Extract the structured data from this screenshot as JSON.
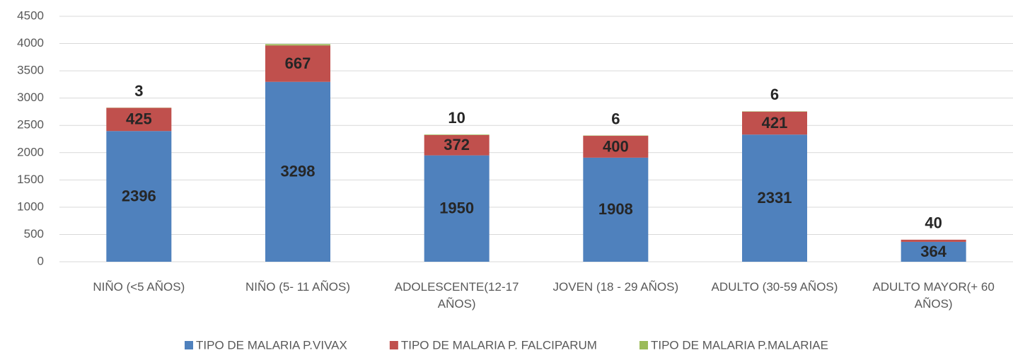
{
  "chart_data": {
    "type": "stacked_bar",
    "categories": [
      "NIÑO (<5 AÑOS)",
      "NIÑO (5- 11 AÑOS)",
      "ADOLESCENTE(12-17 AÑOS)",
      "JOVEN (18 - 29 AÑOS)",
      "ADULTO (30-59 AÑOS)",
      "ADULTO MAYOR(+ 60 AÑOS)"
    ],
    "series": [
      {
        "name": "TIPO DE MALARIA P.VIVAX",
        "color": "#4f81bd",
        "values": [
          2396,
          3298,
          1950,
          1908,
          2331,
          364
        ],
        "value_labels": [
          2396,
          3298,
          1950,
          1908,
          2331,
          364
        ]
      },
      {
        "name": "TIPO DE MALARIA P. FALCIPARUM",
        "color": "#c0504d",
        "values": [
          425,
          667,
          372,
          400,
          421,
          40
        ],
        "value_labels": [
          425,
          667,
          372,
          400,
          421,
          40
        ]
      },
      {
        "name": "TIPO DE MALARIA P.MALARIAE",
        "color": "#9bbb59",
        "values": [
          3,
          25,
          10,
          6,
          6,
          0
        ],
        "value_labels": [
          3,
          null,
          10,
          6,
          6,
          null
        ]
      }
    ],
    "ylim": [
      0,
      4500
    ],
    "yticks": [
      0,
      500,
      1000,
      1500,
      2000,
      2500,
      3000,
      3500,
      4000,
      4500
    ],
    "grid": true,
    "legend": "bottom"
  }
}
